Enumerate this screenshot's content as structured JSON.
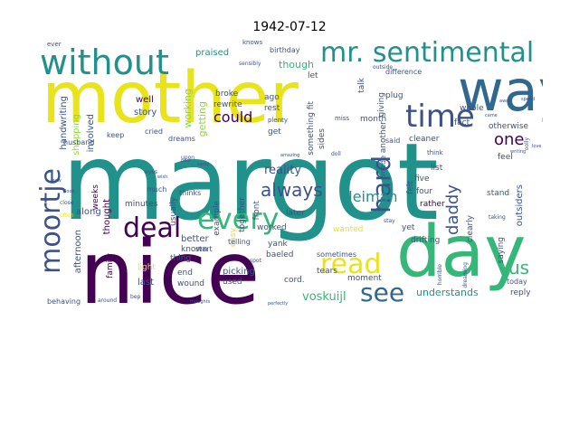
{
  "title": "1942-07-12",
  "palette": {
    "dark_purple": "#440154",
    "indigo": "#3b528b",
    "blue": "#31688e",
    "teal": "#21918c",
    "green": "#35b779",
    "lime": "#90d743",
    "yellow": "#e8e419"
  },
  "words": {
    "margot": "margot",
    "mother": "mother",
    "nice": "nice",
    "day": "day",
    "way": "way",
    "without": "without",
    "mr_sentimental": "mr. sentimental",
    "time": "time",
    "moortje": "moortje",
    "deal": "deal",
    "every": "every",
    "read": "read",
    "see": "see",
    "hard": "hard",
    "always": "always",
    "daddy": "daddy",
    "us": "us",
    "kleiman": "kleiman",
    "one": "one",
    "could": "could",
    "voskuijl": "voskuijl",
    "understands": "understands",
    "reality": "reality",
    "though": "though",
    "working": "working",
    "getting": "getting",
    "praised": "praised",
    "handwriting": "handwriting",
    "shopping": "shopping",
    "involved": "involved",
    "afternoon": "afternoon",
    "along": "along",
    "weeks": "weeks",
    "thought": "thought",
    "minutes": "minutes",
    "story": "story",
    "well": "well",
    "family": "family",
    "light": "light",
    "last": "last",
    "better": "better",
    "known": "known",
    "end": "end",
    "wound": "wound",
    "picking": "picking",
    "used": "used",
    "broke": "broke",
    "rewrite": "rewrite",
    "ago": "ago",
    "rest": "rest",
    "let": "let",
    "birthday": "birthday",
    "sides": "sides",
    "something_fit": "something fit",
    "get": "get",
    "front": "front",
    "later": "later",
    "worked": "worked",
    "yank": "yank",
    "baeled": "baeled",
    "cord": "cord.",
    "tears": "tears",
    "moment": "moment",
    "sometimes": "sometimes",
    "wanted": "wanted",
    "another": "another",
    "made": "made",
    "felt": "felt",
    "five": "five",
    "four": "four",
    "rather": "rather",
    "yet": "yet",
    "list": "list",
    "said": "said",
    "cleaner": "cleaner",
    "month": "month",
    "giving": "giving",
    "plug": "plug",
    "talk": "talk",
    "difference": "difference",
    "whole": "whole",
    "fact": "fact",
    "otherwise": "otherwise",
    "feel": "feel",
    "stand": "stand",
    "clearly": "clearly",
    "saying": "saying",
    "drifting": "drifting",
    "reply": "reply",
    "today": "today",
    "outsiders": "outsiders",
    "easy": "easy",
    "together": "together",
    "example": "example",
    "usually": "usually",
    "start": "start",
    "telling": "telling",
    "thing": "thing",
    "thinks": "thinks",
    "much": "much",
    "dreams": "dreams",
    "cried": "cried",
    "husband": "husband",
    "keep": "keep",
    "behaving": "behaving",
    "around": "around",
    "ever": "ever",
    "knows": "knows",
    "plenty": "plenty",
    "miss": "miss",
    "outside": "outside",
    "think": "think",
    "sensibly": "sensibly",
    "upon": "upon",
    "eyes": "eyes",
    "doll": "doll",
    "amazing": "amazing",
    "stay": "stay",
    "taking": "taking",
    "perfectly": "perfectly",
    "thoughts": "thoughts",
    "spot": "spot",
    "bep": "bep",
    "oolly": "oolly",
    "away": "away",
    "came": "came",
    "love": "love",
    "writing": "writing",
    "speed": "speed",
    "horrible": "horrible",
    "dreaming": "dreaming",
    "sadly": "sadly",
    "poor": "poor",
    "often": "often",
    "close": "close",
    "look": "look",
    "saw": "saw",
    "wish": "wish"
  }
}
